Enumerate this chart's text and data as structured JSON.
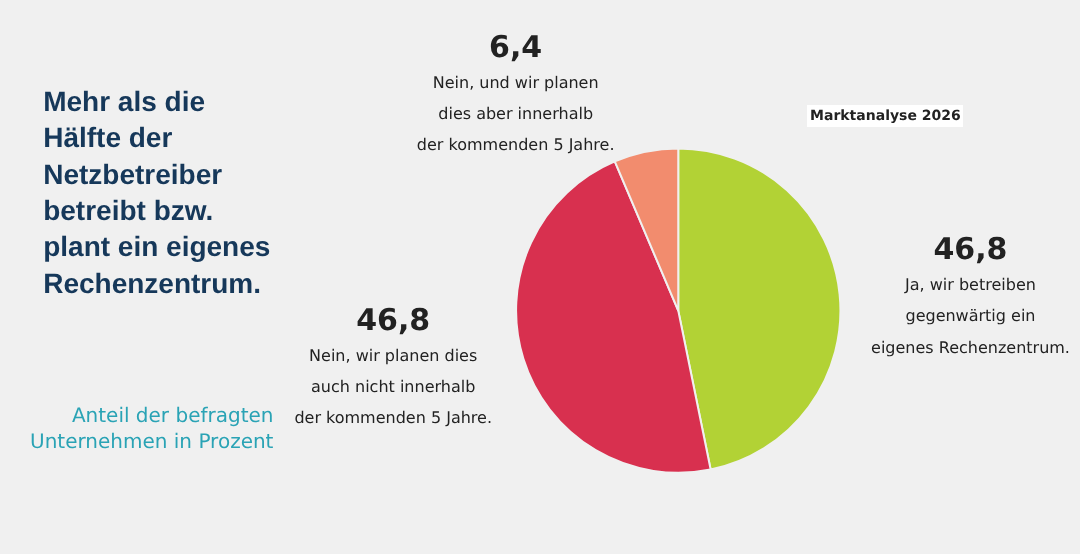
{
  "chart_data": {
    "type": "pie",
    "title": "Mehr als die Hälfte der Netzbetreiber betreibt bzw. plant ein eigenes Rechenzentrum.",
    "subtitle": "Anteil der befragten Unternehmen in Prozent",
    "categories": [
      "Ja, wir betreiben gegenwärtig ein eigenes Rechenzentrum.",
      "Nein, wir planen dies auch nicht innerhalb der kommenden 5 Jahre.",
      "Nein, und wir planen dies aber innerhalb der kommenden 5 Jahre."
    ],
    "values": [
      46.8,
      46.8,
      6.4
    ],
    "value_labels": [
      "46,8",
      "46,8",
      "6,4"
    ],
    "colors": [
      "#b2d235",
      "#d8304f",
      "#f28c6e"
    ],
    "annotations": [
      "Marktanalyse 2026"
    ],
    "legend": false
  }
}
